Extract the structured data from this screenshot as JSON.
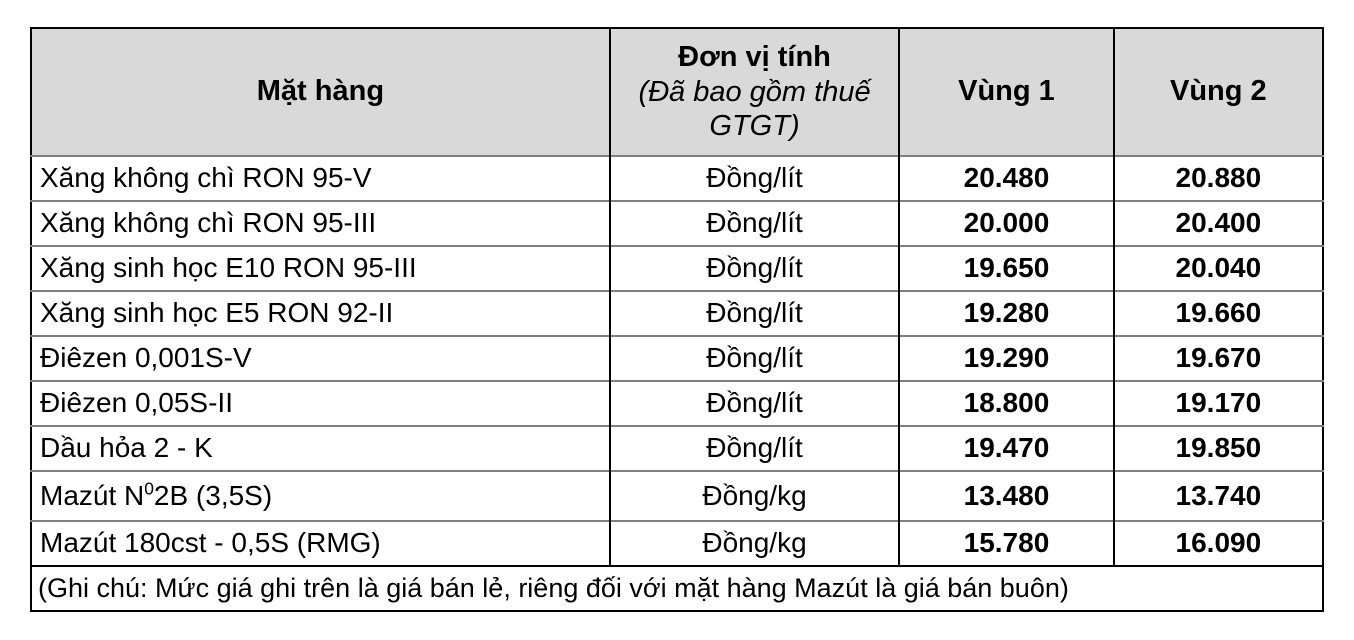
{
  "table": {
    "headers": {
      "item": "Mặt hàng",
      "unit_title": "Đơn vị tính",
      "unit_subtitle": "(Đã bao gồm thuế GTGT)",
      "region1": "Vùng 1",
      "region2": "Vùng 2"
    },
    "rows": [
      {
        "item": "Xăng không chì RON 95-V",
        "unit": "Đồng/lít",
        "region1": "20.480",
        "region2": "20.880"
      },
      {
        "item": "Xăng không chì RON 95-III",
        "unit": "Đồng/lít",
        "region1": "20.000",
        "region2": "20.400"
      },
      {
        "item": "Xăng sinh học E10 RON 95-III",
        "unit": "Đồng/lít",
        "region1": "19.650",
        "region2": "20.040"
      },
      {
        "item": "Xăng sinh học E5 RON 92-II",
        "unit": "Đồng/lít",
        "region1": "19.280",
        "region2": "19.660"
      },
      {
        "item": "Điêzen 0,001S-V",
        "unit": "Đồng/lít",
        "region1": "19.290",
        "region2": "19.670"
      },
      {
        "item": "Điêzen 0,05S-II",
        "unit": "Đồng/lít",
        "region1": "18.800",
        "region2": "19.170"
      },
      {
        "item": "Dầu hỏa 2 - K",
        "unit": "Đồng/lít",
        "region1": "19.470",
        "region2": "19.850"
      },
      {
        "item_pre": "Mazút N",
        "item_sup": "0",
        "item_post": "2B (3,5S)",
        "unit": "Đồng/kg",
        "region1": "13.480",
        "region2": "13.740"
      },
      {
        "item": "Mazút 180cst - 0,5S (RMG)",
        "unit": "Đồng/kg",
        "region1": "15.780",
        "region2": "16.090"
      }
    ],
    "note": "(Ghi chú: Mức giá ghi trên là giá bán lẻ, riêng đối với mặt hàng Mazút là giá bán buôn)"
  },
  "colors": {
    "header_bg": "#d9d9d9",
    "border_dark": "#000000",
    "border_light": "#7f7f7f",
    "text": "#000000"
  }
}
